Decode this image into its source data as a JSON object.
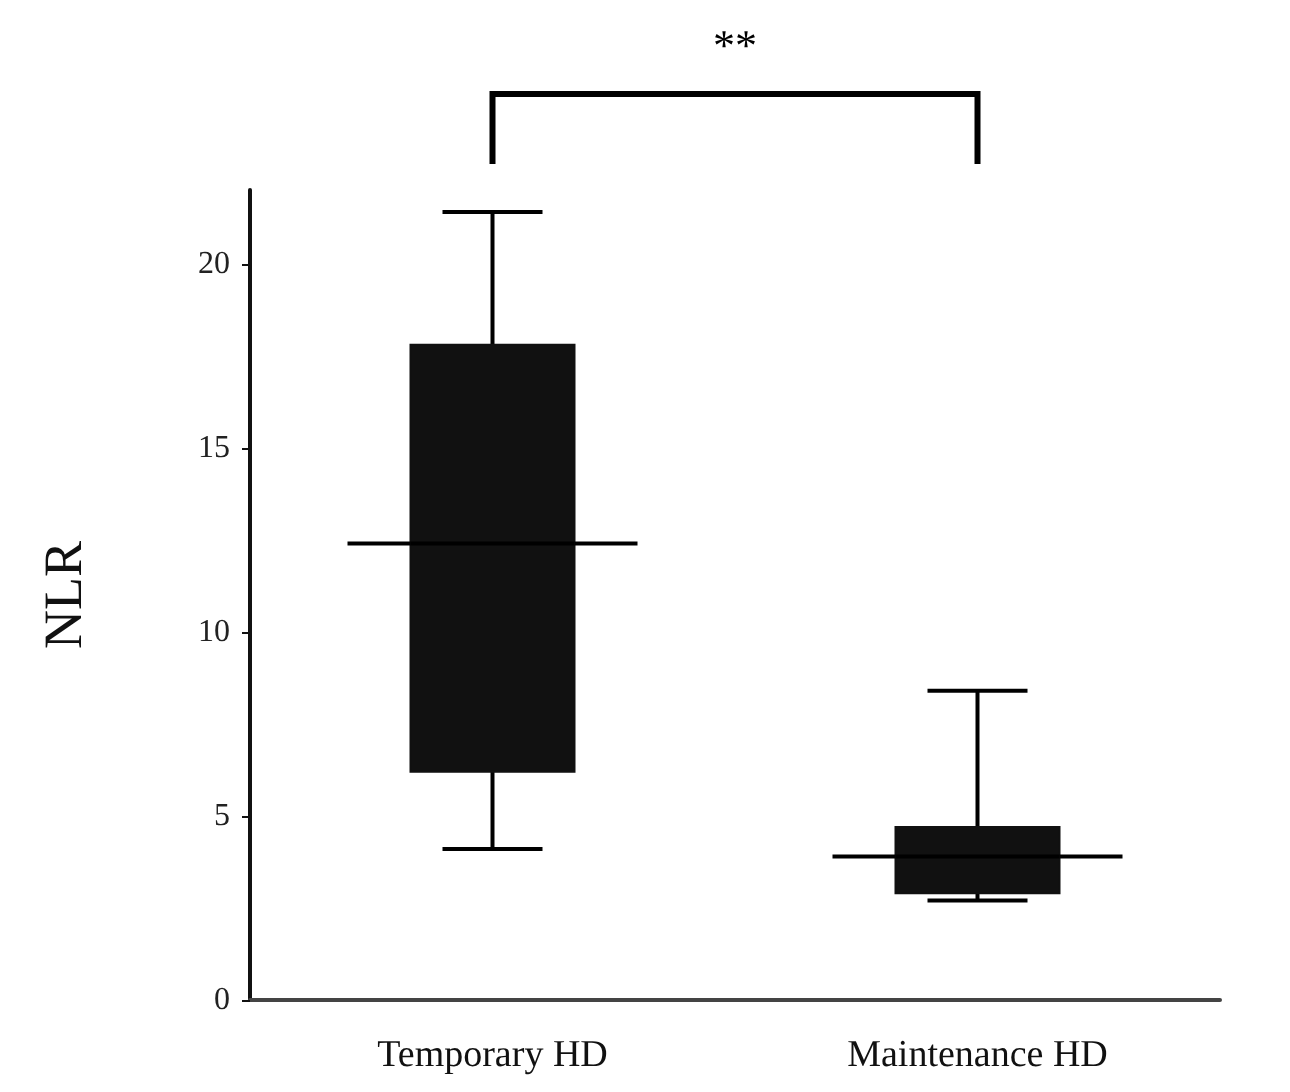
{
  "chart_data": {
    "type": "box",
    "ylabel": "NLR",
    "categories": [
      "Temporary HD",
      "Maintenance HD"
    ],
    "color": "#111111",
    "boxes": [
      {
        "low": 4.1,
        "q1": 6.2,
        "median": 12.4,
        "q3": 17.8,
        "high": 21.4
      },
      {
        "low": 2.7,
        "q1": 2.9,
        "median": 3.9,
        "q3": 4.7,
        "high": 8.4
      }
    ],
    "ylim": [
      0,
      22
    ],
    "yticks": [
      0,
      5,
      10,
      15,
      20
    ],
    "grid": false,
    "annotations": [
      "**"
    ]
  }
}
